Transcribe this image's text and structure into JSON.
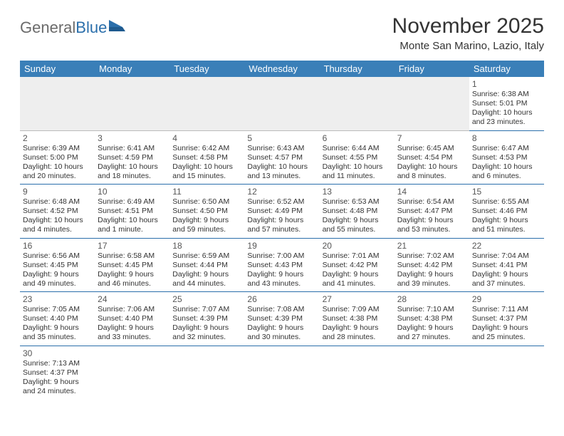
{
  "logo": {
    "text1": "General",
    "text2": "Blue"
  },
  "title": "November 2025",
  "location": "Monte San Marino, Lazio, Italy",
  "colors": {
    "header_bg": "#3a7fb8",
    "header_text": "#ffffff",
    "rule": "#2b6fab",
    "empty_bg": "#eeeeee",
    "logo_gray": "#6b6b6b",
    "logo_blue": "#2b6fab"
  },
  "day_headers": [
    "Sunday",
    "Monday",
    "Tuesday",
    "Wednesday",
    "Thursday",
    "Friday",
    "Saturday"
  ],
  "weeks": [
    [
      null,
      null,
      null,
      null,
      null,
      null,
      {
        "n": "1",
        "sr": "Sunrise: 6:38 AM",
        "ss": "Sunset: 5:01 PM",
        "d1": "Daylight: 10 hours",
        "d2": "and 23 minutes."
      }
    ],
    [
      {
        "n": "2",
        "sr": "Sunrise: 6:39 AM",
        "ss": "Sunset: 5:00 PM",
        "d1": "Daylight: 10 hours",
        "d2": "and 20 minutes."
      },
      {
        "n": "3",
        "sr": "Sunrise: 6:41 AM",
        "ss": "Sunset: 4:59 PM",
        "d1": "Daylight: 10 hours",
        "d2": "and 18 minutes."
      },
      {
        "n": "4",
        "sr": "Sunrise: 6:42 AM",
        "ss": "Sunset: 4:58 PM",
        "d1": "Daylight: 10 hours",
        "d2": "and 15 minutes."
      },
      {
        "n": "5",
        "sr": "Sunrise: 6:43 AM",
        "ss": "Sunset: 4:57 PM",
        "d1": "Daylight: 10 hours",
        "d2": "and 13 minutes."
      },
      {
        "n": "6",
        "sr": "Sunrise: 6:44 AM",
        "ss": "Sunset: 4:55 PM",
        "d1": "Daylight: 10 hours",
        "d2": "and 11 minutes."
      },
      {
        "n": "7",
        "sr": "Sunrise: 6:45 AM",
        "ss": "Sunset: 4:54 PM",
        "d1": "Daylight: 10 hours",
        "d2": "and 8 minutes."
      },
      {
        "n": "8",
        "sr": "Sunrise: 6:47 AM",
        "ss": "Sunset: 4:53 PM",
        "d1": "Daylight: 10 hours",
        "d2": "and 6 minutes."
      }
    ],
    [
      {
        "n": "9",
        "sr": "Sunrise: 6:48 AM",
        "ss": "Sunset: 4:52 PM",
        "d1": "Daylight: 10 hours",
        "d2": "and 4 minutes."
      },
      {
        "n": "10",
        "sr": "Sunrise: 6:49 AM",
        "ss": "Sunset: 4:51 PM",
        "d1": "Daylight: 10 hours",
        "d2": "and 1 minute."
      },
      {
        "n": "11",
        "sr": "Sunrise: 6:50 AM",
        "ss": "Sunset: 4:50 PM",
        "d1": "Daylight: 9 hours",
        "d2": "and 59 minutes."
      },
      {
        "n": "12",
        "sr": "Sunrise: 6:52 AM",
        "ss": "Sunset: 4:49 PM",
        "d1": "Daylight: 9 hours",
        "d2": "and 57 minutes."
      },
      {
        "n": "13",
        "sr": "Sunrise: 6:53 AM",
        "ss": "Sunset: 4:48 PM",
        "d1": "Daylight: 9 hours",
        "d2": "and 55 minutes."
      },
      {
        "n": "14",
        "sr": "Sunrise: 6:54 AM",
        "ss": "Sunset: 4:47 PM",
        "d1": "Daylight: 9 hours",
        "d2": "and 53 minutes."
      },
      {
        "n": "15",
        "sr": "Sunrise: 6:55 AM",
        "ss": "Sunset: 4:46 PM",
        "d1": "Daylight: 9 hours",
        "d2": "and 51 minutes."
      }
    ],
    [
      {
        "n": "16",
        "sr": "Sunrise: 6:56 AM",
        "ss": "Sunset: 4:45 PM",
        "d1": "Daylight: 9 hours",
        "d2": "and 49 minutes."
      },
      {
        "n": "17",
        "sr": "Sunrise: 6:58 AM",
        "ss": "Sunset: 4:45 PM",
        "d1": "Daylight: 9 hours",
        "d2": "and 46 minutes."
      },
      {
        "n": "18",
        "sr": "Sunrise: 6:59 AM",
        "ss": "Sunset: 4:44 PM",
        "d1": "Daylight: 9 hours",
        "d2": "and 44 minutes."
      },
      {
        "n": "19",
        "sr": "Sunrise: 7:00 AM",
        "ss": "Sunset: 4:43 PM",
        "d1": "Daylight: 9 hours",
        "d2": "and 43 minutes."
      },
      {
        "n": "20",
        "sr": "Sunrise: 7:01 AM",
        "ss": "Sunset: 4:42 PM",
        "d1": "Daylight: 9 hours",
        "d2": "and 41 minutes."
      },
      {
        "n": "21",
        "sr": "Sunrise: 7:02 AM",
        "ss": "Sunset: 4:42 PM",
        "d1": "Daylight: 9 hours",
        "d2": "and 39 minutes."
      },
      {
        "n": "22",
        "sr": "Sunrise: 7:04 AM",
        "ss": "Sunset: 4:41 PM",
        "d1": "Daylight: 9 hours",
        "d2": "and 37 minutes."
      }
    ],
    [
      {
        "n": "23",
        "sr": "Sunrise: 7:05 AM",
        "ss": "Sunset: 4:40 PM",
        "d1": "Daylight: 9 hours",
        "d2": "and 35 minutes."
      },
      {
        "n": "24",
        "sr": "Sunrise: 7:06 AM",
        "ss": "Sunset: 4:40 PM",
        "d1": "Daylight: 9 hours",
        "d2": "and 33 minutes."
      },
      {
        "n": "25",
        "sr": "Sunrise: 7:07 AM",
        "ss": "Sunset: 4:39 PM",
        "d1": "Daylight: 9 hours",
        "d2": "and 32 minutes."
      },
      {
        "n": "26",
        "sr": "Sunrise: 7:08 AM",
        "ss": "Sunset: 4:39 PM",
        "d1": "Daylight: 9 hours",
        "d2": "and 30 minutes."
      },
      {
        "n": "27",
        "sr": "Sunrise: 7:09 AM",
        "ss": "Sunset: 4:38 PM",
        "d1": "Daylight: 9 hours",
        "d2": "and 28 minutes."
      },
      {
        "n": "28",
        "sr": "Sunrise: 7:10 AM",
        "ss": "Sunset: 4:38 PM",
        "d1": "Daylight: 9 hours",
        "d2": "and 27 minutes."
      },
      {
        "n": "29",
        "sr": "Sunrise: 7:11 AM",
        "ss": "Sunset: 4:37 PM",
        "d1": "Daylight: 9 hours",
        "d2": "and 25 minutes."
      }
    ],
    [
      {
        "n": "30",
        "sr": "Sunrise: 7:13 AM",
        "ss": "Sunset: 4:37 PM",
        "d1": "Daylight: 9 hours",
        "d2": "and 24 minutes."
      },
      null,
      null,
      null,
      null,
      null,
      null
    ]
  ]
}
